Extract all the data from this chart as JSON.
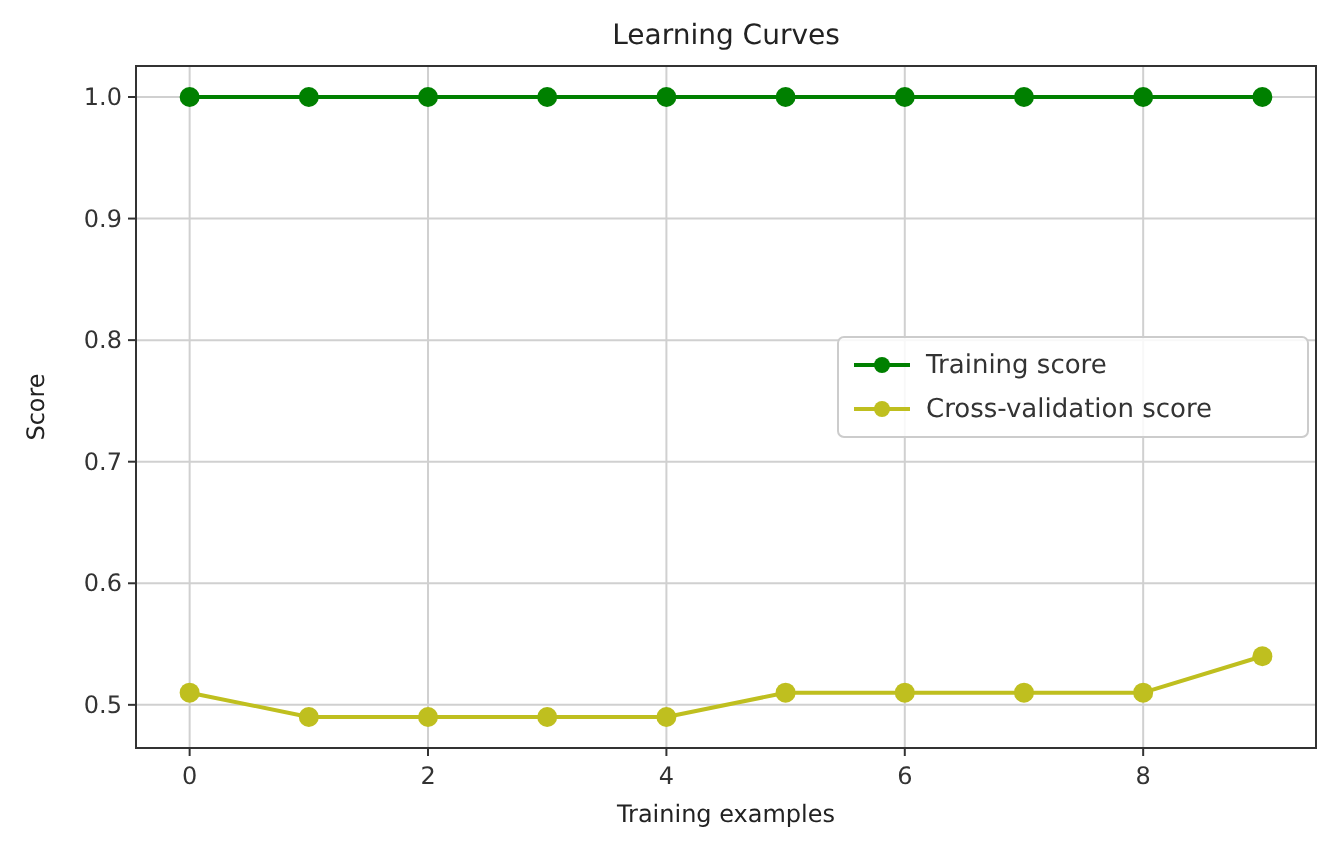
{
  "chart_data": {
    "type": "line",
    "title": "Learning Curves",
    "xlabel": "Training examples",
    "ylabel": "Score",
    "x": [
      0,
      1,
      2,
      3,
      4,
      5,
      6,
      7,
      8,
      9
    ],
    "series": [
      {
        "name": "Training score",
        "color": "#008000",
        "values": [
          1,
          1,
          1,
          1,
          1,
          1,
          1,
          1,
          1,
          1
        ]
      },
      {
        "name": "Cross-validation score",
        "color": "#bfbf1f",
        "values": [
          0.51,
          0.49,
          0.49,
          0.49,
          0.49,
          0.51,
          0.51,
          0.51,
          0.51,
          0.54
        ]
      }
    ],
    "xlim": [
      -0.45,
      9.45
    ],
    "ylim": [
      0.4645,
      1.0255
    ],
    "xticks": [
      0,
      2,
      4,
      6,
      8
    ],
    "yticks": [
      {
        "value": 0.5,
        "label": "0.5"
      },
      {
        "value": 0.6,
        "label": "0.6"
      },
      {
        "value": 0.7,
        "label": "0.7"
      },
      {
        "value": 0.8,
        "label": "0.8"
      },
      {
        "value": 0.9,
        "label": "0.9"
      },
      {
        "value": 1.0,
        "label": "1.0"
      }
    ],
    "grid": true,
    "legend": "right",
    "marker": "circle",
    "line_style": "solid"
  }
}
